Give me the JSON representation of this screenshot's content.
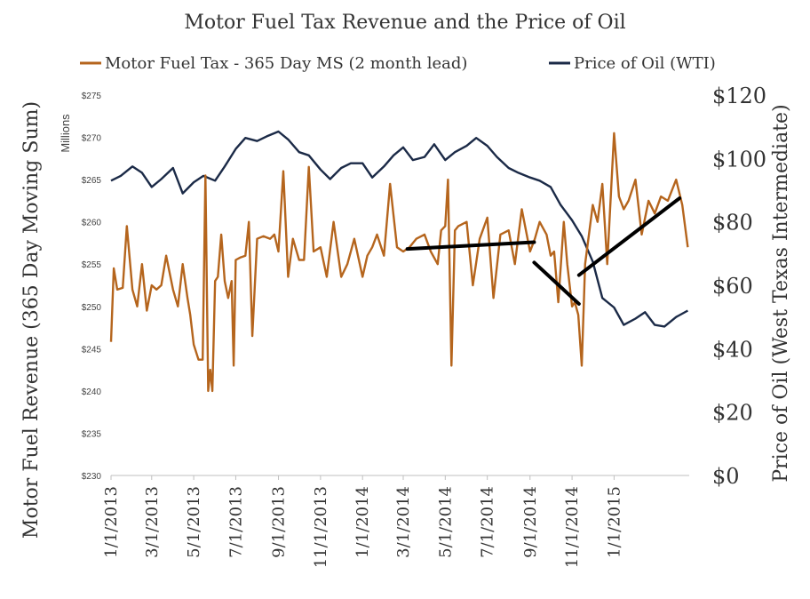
{
  "chart_data": {
    "type": "line",
    "title": "Motor Fuel Tax Revenue and the Price of Oil",
    "legend": [
      {
        "label": "Motor Fuel Tax - 365 Day MS (2 month lead)",
        "color": "#b5651d"
      },
      {
        "label": "Price of Oil (WTI)",
        "color": "#1b2a47"
      }
    ],
    "legend_position": "top",
    "grid": false,
    "y_left": {
      "label": "Motor Fuel Revenue (365 Day Moving Sum)",
      "unit_label": "Millions",
      "range": [
        230,
        275
      ],
      "ticks": [
        "$230",
        "$235",
        "$240",
        "$245",
        "$250",
        "$255",
        "$260",
        "$265",
        "$270",
        "$275"
      ]
    },
    "y_right": {
      "label": "Price of Oil (West Texas Intermediate)",
      "range": [
        0,
        120
      ],
      "ticks": [
        "$0",
        "$20",
        "$40",
        "$60",
        "$80",
        "$100",
        "$120"
      ]
    },
    "x_axis": {
      "ticks": [
        "1/1/2013",
        "3/1/2013",
        "5/1/2013",
        "7/1/2013",
        "9/1/2013",
        "11/1/2013",
        "1/1/2014",
        "3/1/2014",
        "5/1/2014",
        "7/1/2014",
        "9/1/2014",
        "11/1/2014",
        "1/1/2015"
      ],
      "start": "2013-01-01",
      "end": "2015-04-20"
    },
    "series": [
      {
        "name": "Motor Fuel Tax - 365 Day MS (2 month lead)",
        "axis": "left",
        "color": "#b5651d",
        "x": [
          "2013-01-01",
          "2013-01-05",
          "2013-01-10",
          "2013-01-18",
          "2013-01-24",
          "2013-02-01",
          "2013-02-08",
          "2013-02-15",
          "2013-02-22",
          "2013-03-01",
          "2013-03-08",
          "2013-03-15",
          "2013-03-22",
          "2013-04-01",
          "2013-04-08",
          "2013-04-15",
          "2013-04-22",
          "2013-04-26",
          "2013-05-01",
          "2013-05-08",
          "2013-05-14",
          "2013-05-18",
          "2013-05-22",
          "2013-05-25",
          "2013-05-28",
          "2013-06-01",
          "2013-06-05",
          "2013-06-10",
          "2013-06-15",
          "2013-06-20",
          "2013-06-25",
          "2013-06-28",
          "2013-07-01",
          "2013-07-08",
          "2013-07-15",
          "2013-07-20",
          "2013-07-25",
          "2013-08-01",
          "2013-08-10",
          "2013-08-20",
          "2013-08-26",
          "2013-09-01",
          "2013-09-08",
          "2013-09-15",
          "2013-09-22",
          "2013-10-01",
          "2013-10-08",
          "2013-10-15",
          "2013-10-22",
          "2013-11-01",
          "2013-11-10",
          "2013-11-20",
          "2013-12-01",
          "2013-12-10",
          "2013-12-20",
          "2014-01-01",
          "2014-01-08",
          "2014-01-15",
          "2014-01-22",
          "2014-02-01",
          "2014-02-10",
          "2014-02-20",
          "2014-03-01",
          "2014-03-10",
          "2014-03-20",
          "2014-04-01",
          "2014-04-10",
          "2014-04-20",
          "2014-04-25",
          "2014-05-01",
          "2014-05-05",
          "2014-05-10",
          "2014-05-15",
          "2014-05-20",
          "2014-06-01",
          "2014-06-10",
          "2014-06-20",
          "2014-07-01",
          "2014-07-10",
          "2014-07-20",
          "2014-08-01",
          "2014-08-10",
          "2014-08-20",
          "2014-09-01",
          "2014-09-08",
          "2014-09-15",
          "2014-09-25",
          "2014-10-01",
          "2014-10-06",
          "2014-10-12",
          "2014-10-20",
          "2014-10-25",
          "2014-11-01",
          "2014-11-05",
          "2014-11-10",
          "2014-11-15",
          "2014-11-20",
          "2014-12-01",
          "2014-12-08",
          "2014-12-15",
          "2014-12-22",
          "2015-01-01",
          "2015-01-08",
          "2015-01-15",
          "2015-01-22",
          "2015-02-01",
          "2015-02-10",
          "2015-02-20",
          "2015-03-01",
          "2015-03-10",
          "2015-03-20",
          "2015-04-01",
          "2015-04-10",
          "2015-04-18"
        ],
        "values": [
          245.8,
          254.5,
          252.0,
          252.2,
          259.5,
          252.0,
          250.0,
          255.0,
          249.5,
          252.5,
          252.0,
          252.5,
          256.0,
          252.0,
          250.0,
          255.0,
          251.0,
          249.0,
          245.5,
          243.7,
          243.7,
          265.5,
          240.0,
          242.5,
          240.0,
          253.0,
          253.5,
          258.5,
          253.0,
          251.0,
          253.0,
          243.0,
          255.5,
          255.8,
          256.0,
          260.0,
          246.5,
          258.0,
          258.3,
          258.0,
          258.5,
          256.5,
          266.0,
          253.5,
          258.0,
          255.5,
          255.5,
          266.5,
          256.5,
          257.0,
          253.5,
          260.0,
          253.5,
          255.0,
          258.0,
          253.5,
          256.0,
          257.0,
          258.5,
          256.0,
          264.5,
          257.0,
          256.5,
          257.0,
          258.0,
          258.5,
          256.5,
          255.0,
          259.0,
          259.5,
          265.0,
          243.0,
          259.0,
          259.5,
          260.0,
          252.5,
          258.0,
          260.5,
          251.0,
          258.5,
          259.0,
          255.0,
          261.5,
          256.5,
          258.0,
          260.0,
          258.5,
          256.0,
          256.5,
          250.5,
          260.0,
          255.0,
          250.0,
          250.5,
          249.0,
          243.0,
          255.0,
          262.0,
          260.0,
          264.5,
          255.0,
          270.5,
          263.0,
          261.5,
          262.5,
          265.0,
          258.5,
          262.5,
          261.0,
          263.0,
          262.5,
          265.0,
          262.0,
          257.0
        ]
      },
      {
        "name": "Price of Oil (WTI)",
        "axis": "right",
        "color": "#1b2a47",
        "x": [
          "2013-01-01",
          "2013-01-15",
          "2013-02-01",
          "2013-02-15",
          "2013-03-01",
          "2013-03-15",
          "2013-04-01",
          "2013-04-15",
          "2013-05-01",
          "2013-05-15",
          "2013-06-01",
          "2013-06-15",
          "2013-07-01",
          "2013-07-15",
          "2013-08-01",
          "2013-08-15",
          "2013-09-01",
          "2013-09-15",
          "2013-10-01",
          "2013-10-15",
          "2013-11-01",
          "2013-11-15",
          "2013-12-01",
          "2013-12-15",
          "2014-01-01",
          "2014-01-15",
          "2014-02-01",
          "2014-02-15",
          "2014-03-01",
          "2014-03-15",
          "2014-04-01",
          "2014-04-15",
          "2014-05-01",
          "2014-05-15",
          "2014-06-01",
          "2014-06-15",
          "2014-07-01",
          "2014-07-15",
          "2014-08-01",
          "2014-08-15",
          "2014-09-01",
          "2014-09-15",
          "2014-10-01",
          "2014-10-15",
          "2014-11-01",
          "2014-11-15",
          "2014-12-01",
          "2014-12-15",
          "2015-01-01",
          "2015-01-15",
          "2015-02-01",
          "2015-02-15",
          "2015-03-01",
          "2015-03-15",
          "2015-04-01",
          "2015-04-18"
        ],
        "values": [
          93.0,
          94.5,
          97.5,
          95.5,
          91.0,
          93.5,
          97.0,
          89.0,
          92.5,
          94.5,
          93.0,
          97.5,
          103.0,
          106.5,
          105.5,
          107.0,
          108.5,
          106.0,
          102.0,
          101.0,
          96.5,
          93.5,
          97.0,
          98.5,
          98.5,
          94.0,
          97.5,
          101.0,
          103.5,
          99.5,
          100.5,
          104.5,
          99.5,
          102.0,
          104.0,
          106.5,
          104.0,
          100.5,
          97.0,
          95.5,
          94.0,
          93.0,
          91.0,
          85.5,
          80.5,
          75.5,
          67.5,
          56.0,
          53.0,
          47.5,
          49.5,
          51.5,
          47.5,
          47.0,
          50.0,
          52.0
        ]
      }
    ],
    "annotations": [
      {
        "type": "trend-line",
        "axis": "left",
        "from": [
          "2014-03-07",
          256.8
        ],
        "to": [
          "2014-09-07",
          257.6
        ]
      },
      {
        "type": "trend-line",
        "axis": "left",
        "from": [
          "2014-09-07",
          255.2
        ],
        "to": [
          "2014-11-11",
          250.3
        ]
      },
      {
        "type": "trend-line",
        "axis": "left",
        "from": [
          "2014-11-11",
          253.7
        ],
        "to": [
          "2015-04-06",
          262.8
        ]
      }
    ]
  }
}
